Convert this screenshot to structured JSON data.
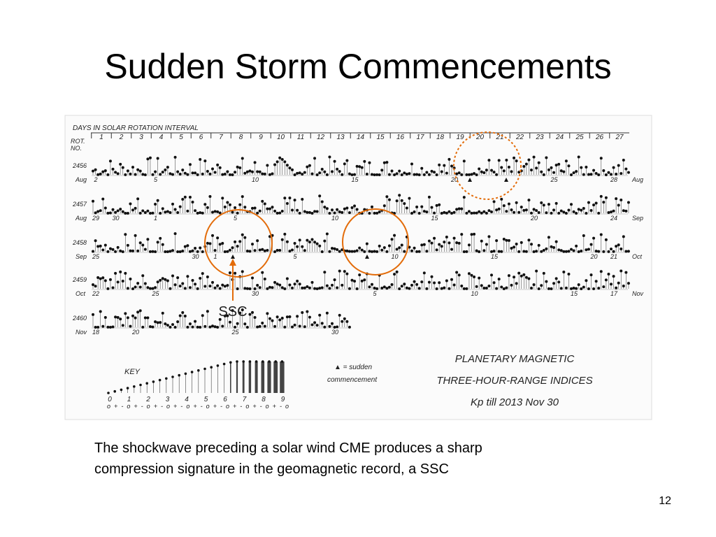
{
  "title": "Sudden Storm Commencements",
  "figure": {
    "header": "DAYS IN SOLAR ROTATION INTERVAL",
    "rot_label": [
      "ROT.",
      "NO."
    ],
    "days": [
      "1",
      "2",
      "3",
      "4",
      "5",
      "6",
      "7",
      "8",
      "9",
      "10",
      "11",
      "12",
      "13",
      "14",
      "15",
      "16",
      "17",
      "18",
      "19",
      "20",
      "21",
      "22",
      "23",
      "24",
      "25",
      "26",
      "27"
    ],
    "rows": [
      {
        "rot": "2456",
        "month_left": "Aug",
        "month_right": "Aug",
        "dates": [
          "2",
          "5",
          "10",
          "15",
          "20",
          "25",
          "28"
        ]
      },
      {
        "rot": "2457",
        "month_left": "Aug",
        "month_right": "Sep",
        "dates": [
          "29",
          "30",
          "1",
          "5",
          "10",
          "15",
          "20",
          "24"
        ]
      },
      {
        "rot": "2458",
        "month_left": "Sep",
        "month_right": "Oct",
        "dates": [
          "25",
          "30",
          "1",
          "5",
          "10",
          "15",
          "20",
          "21"
        ]
      },
      {
        "rot": "2459",
        "month_left": "Oct",
        "month_right": "Nov",
        "dates": [
          "22",
          "25",
          "30",
          "5",
          "10",
          "15",
          "17"
        ]
      },
      {
        "rot": "2460",
        "month_left": "Nov",
        "month_right": null,
        "dates": [
          "18",
          "20",
          "25",
          "30"
        ]
      }
    ],
    "key": {
      "label": "KEY",
      "scale": [
        "0",
        "1",
        "2",
        "3",
        "4",
        "5",
        "6",
        "7",
        "8",
        "9"
      ],
      "subscale": "o + - o + - o + - o + - o + - o + - o + - o + - o + - o"
    },
    "legend": [
      "▲ = sudden",
      "commencement"
    ],
    "info": [
      "PLANETARY MAGNETIC",
      "THREE-HOUR-RANGE INDICES",
      "Kp  till 2013 Nov 30"
    ]
  },
  "annotation": "SSC",
  "caption": [
    "The shockwave preceding a solar wind CME produces a sharp",
    "compression signature in the geomagnetic record, a SSC"
  ],
  "page_number": "12"
}
